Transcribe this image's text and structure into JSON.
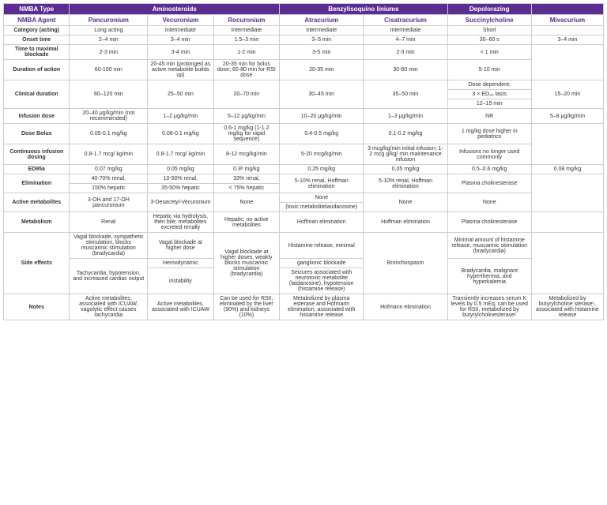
{
  "headers": {
    "nmba_type": "NMBA Type",
    "amino": "Aminosteroids",
    "benzyl": "Benzylisoquino liniums",
    "depol": "Depolorazing",
    "nmba_agent": "NMBA Agent",
    "pancuronium": "Pancuronium",
    "vecuronium": "Vecuronium",
    "rocuronium": "Rocuronium",
    "atracurium": "Atracurium",
    "cisatracurium": "Cisatracurium",
    "succinylcholine": "Succinylcholine",
    "mivacurium": "Mivacurium"
  },
  "rows": {
    "category": {
      "label": "Category (acting)",
      "pan": "Long acting",
      "vec": "Intermediate",
      "roc": "Intermediate",
      "atr": "Intermediate",
      "cis": "Intermediate",
      "suc": "Short",
      "miv": ""
    },
    "onset": {
      "label": "Onset time",
      "pan": "2–4 min",
      "vec": "3–4 min",
      "roc": "1.5–3 min",
      "atr": "3–5 min",
      "cis": "4–7 min",
      "suc": "30–60 s",
      "miv": "3–4 min"
    },
    "tmax": {
      "label": "Time to maximal blockade",
      "pan": "2-3 min",
      "vec": "3-4 min",
      "roc": "1-2 min",
      "atr": "3-5 min",
      "cis": "2-3 min",
      "suc": "< 1 min",
      "miv": ""
    },
    "duration": {
      "label": "Duration of  action",
      "pan": "60-100 min",
      "vec": "20-45 min (prolonged as active metabolite builds up)",
      "roc": "20-35 min for bolus dose; 60-80 min for RSI dose",
      "atr": "20-35 min",
      "cis": "30-60 min",
      "suc": "5-10 min",
      "miv": ""
    },
    "clinical": {
      "label": "Clinical duration",
      "pan": "60–120 min",
      "vec": "25–50 min",
      "roc": "20–70 min",
      "atr": "30–45 min",
      "cis": "35–50 min",
      "suc1": "Dose dependent;",
      "suc2": "3 × ED₉₅ lasts",
      "suc3": "12–15 min",
      "miv": "15–20 min"
    },
    "infusion": {
      "label": "Infusion dose",
      "pan": "20–40 μg/kg/min (not recommended)",
      "vec": "1–2 μg/kg/min",
      "roc": "5–12 μg/kg/min",
      "atr": "10–20 μg/kg/min",
      "cis": "1–3 μg/kg/min",
      "suc": "NR",
      "miv": "5–8 μg/kg/min"
    },
    "bolus": {
      "label": "Dose Bolus",
      "pan": "0.05-0.1 mg/kg",
      "vec": "0.08-0.1 mg/kg",
      "roc": "0.6-1 mg/kg (1-1.2 mg/kg for rapid sequence)",
      "atr": "0.4-0.5 mg/kg",
      "cis": "0.1-0.2 mg/kg",
      "suc": "1 mg/kg dose higher in pediatrics",
      "miv": ""
    },
    "contdose": {
      "label": "Continuous infusion dosing",
      "pan": "0.8-1.7 mcg/ kg/min",
      "vec": "0.8-1.7 mcg/ kg/min",
      "roc": "8-12 mcg/kg/min",
      "atr": "5-20 mcg/kg/min",
      "cis": "3 mcg/kg/min initial infusion; 1-2 mcg g/kg/ min maintenance infusion",
      "suc": "Infusions no longer used commonly",
      "miv": ""
    },
    "ed95": {
      "label": "ED95a",
      "pan": "0.07 mg/kg",
      "vec": "0.05 mg/kg",
      "roc": "0.3ᵇ mg/kg",
      "atr": "0.25 mg/kg",
      "cis": "0.05 mg/kg",
      "suc": "0.5–0.6 mg/kg",
      "miv": "0.08 mg/kg"
    },
    "elim": {
      "label": "Elimination",
      "pan1": "40-70% renal,",
      "pan2": "150% hepatic",
      "vec1": "10-50% renal,",
      "vec2": "35-50% hepatic",
      "roc1": "33% renal,",
      "roc2": "< 75% hepatic",
      "atr": "5-10% renal, Hoffman elimination",
      "cis": "5-10% renal, Hoffman elimination",
      "suc": "Plasma cholinesterase",
      "miv": ""
    },
    "active": {
      "label": "Active  metabolites",
      "pan": "3-OH and 17-OH pancuronium",
      "vec": "3-Desacetyl-Vecuronium",
      "roc": "None",
      "atr1": "None",
      "atr2": "(toxic metabolitelaudanosine)",
      "cis": "None",
      "suc": "None",
      "miv": ""
    },
    "metab": {
      "label": "Metabolism",
      "pan": "Renal",
      "vec": "Hepatic via hydrolysis, then bile; metabolites excreted renally",
      "roc": "Hepatic; no active metabolites",
      "atr": "Hoffman elimination",
      "cis": "Hoffman elimination",
      "suc": "Plasma cholinesterase",
      "miv": ""
    },
    "side": {
      "label": "Side effects",
      "pan1": "Vagal blockade, sympathetic stimulation, blocks muscarinic stimulation (bradycardia)",
      "pan2": "Tachycardia, hypotension, and increased cardiac output",
      "vec1": "Vagal blockade at higher dose",
      "vec2": "Hemodynamic",
      "vec3": "instability",
      "roc": "Vagal blockade at higher doses, weakly blocks muscarinic stimulation (bradycardia)",
      "atr1": "Histamine release, minimal",
      "atr2": "ganglionic blockade",
      "atr3": "Seizures associated with neurotoxic metabolite (laidanosine), hypotension (histamine release)",
      "cis": "Bronchospasm",
      "suc1": "Minimal amount of histamine release, muscarinic stimulation (bradycardia)",
      "suc2": "Bradycardia, malignant hyperthermia, and hyperkalemia",
      "miv": ""
    },
    "notes": {
      "label": "Notes",
      "pan": "Active metabolites, associated with ICUAW, vagolytic effect causes tachycardia",
      "vec": "Active metabolites, associated with ICUAW",
      "roc": "Can be used for RSII, eliminated by the liver (90%) and kidneys (10%)",
      "atr": "Metabolized by plasma esterase and Hofmann elimination, associated with histamine release",
      "cis": "Hofmann elimination",
      "suc": "Transiently increases serum K levels by 0.5 mEq, can be used for RSII, metabolized by butyrylcholinesteraseᶜ",
      "miv": "Metabolized by butyrylcholine steraseᶜ, associated with histamine release"
    }
  },
  "style": {
    "header_bg": "#5b2c91",
    "header_fg": "#ffffff",
    "agent_fg": "#5b2c91",
    "border": "#cccccc",
    "font_base": 7
  }
}
